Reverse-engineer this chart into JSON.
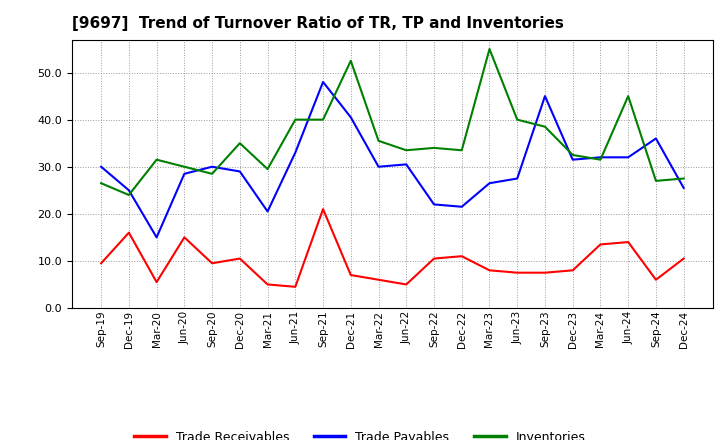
{
  "title": "[9697]  Trend of Turnover Ratio of TR, TP and Inventories",
  "x_labels": [
    "Sep-19",
    "Dec-19",
    "Mar-20",
    "Jun-20",
    "Sep-20",
    "Dec-20",
    "Mar-21",
    "Jun-21",
    "Sep-21",
    "Dec-21",
    "Mar-22",
    "Jun-22",
    "Sep-22",
    "Dec-22",
    "Mar-23",
    "Jun-23",
    "Sep-23",
    "Dec-23",
    "Mar-24",
    "Jun-24",
    "Sep-24",
    "Dec-24"
  ],
  "trade_receivables": [
    9.5,
    16.0,
    5.5,
    15.0,
    9.5,
    10.5,
    5.0,
    4.5,
    21.0,
    7.0,
    6.0,
    5.0,
    10.5,
    11.0,
    8.0,
    7.5,
    7.5,
    8.0,
    13.5,
    14.0,
    6.0,
    10.5
  ],
  "trade_payables": [
    30.0,
    25.0,
    15.0,
    28.5,
    30.0,
    29.0,
    20.5,
    33.0,
    48.0,
    40.5,
    30.0,
    30.5,
    22.0,
    21.5,
    26.5,
    27.5,
    45.0,
    31.5,
    32.0,
    32.0,
    36.0,
    25.5
  ],
  "inventories": [
    26.5,
    24.0,
    31.5,
    30.0,
    28.5,
    35.0,
    29.5,
    40.0,
    40.0,
    52.5,
    35.5,
    33.5,
    34.0,
    33.5,
    55.0,
    40.0,
    38.5,
    32.5,
    31.5,
    45.0,
    27.0,
    27.5
  ],
  "ylim": [
    0,
    57
  ],
  "yticks": [
    0.0,
    10.0,
    20.0,
    30.0,
    40.0,
    50.0
  ],
  "legend_labels": [
    "Trade Receivables",
    "Trade Payables",
    "Inventories"
  ],
  "line_colors": [
    "#ff0000",
    "#0000ff",
    "#008000"
  ],
  "background_color": "#ffffff",
  "grid_color": "#999999"
}
